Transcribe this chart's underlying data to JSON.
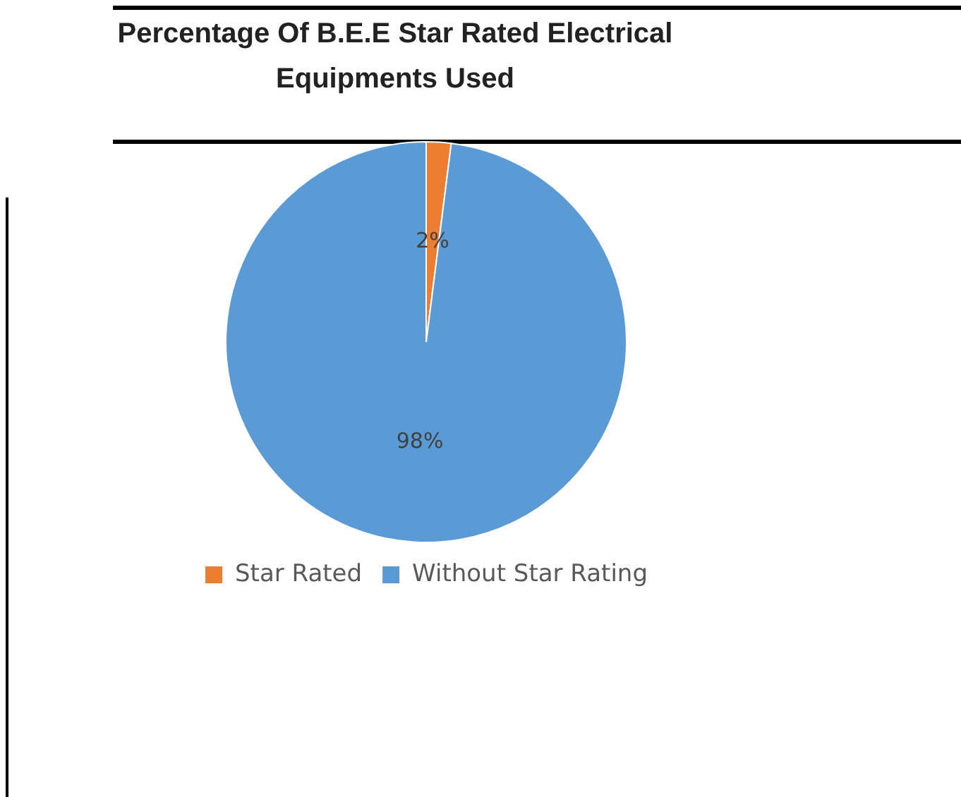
{
  "chart_data": {
    "type": "pie",
    "title": "Percentage Of B.E.E Star Rated Electrical Equipments Used",
    "categories": [
      "Star Rated",
      "Without Star Rating"
    ],
    "values": [
      2,
      98
    ],
    "value_labels": [
      "2%",
      "98%"
    ],
    "colors": [
      "#ed7d31",
      "#5b9bd5"
    ],
    "legend": "bottom"
  }
}
